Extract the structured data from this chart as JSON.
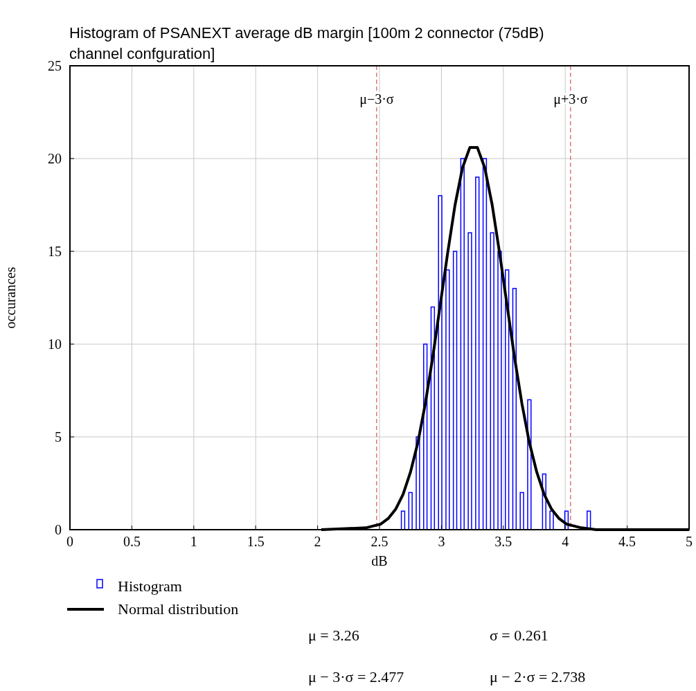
{
  "chart_data": {
    "type": "histogram",
    "title": "Histogram of PSANEXT average dB margin [100m 2 connector (75dB) channel confguration]",
    "xlabel": "dB",
    "ylabel": "occurances",
    "bins": [
      2.66,
      2.72,
      2.78,
      2.84,
      2.9,
      2.96,
      3.02,
      3.08,
      3.14,
      3.2,
      3.26,
      3.32,
      3.38,
      3.44,
      3.5,
      3.56,
      3.62,
      3.68,
      3.74,
      3.8,
      3.86,
      3.92,
      3.98,
      4.04,
      4.1,
      4.16,
      4.22
    ],
    "series": [
      {
        "name": "Histogram",
        "color": "#0000ff",
        "values": [
          1,
          2,
          5,
          10,
          12,
          18,
          14,
          15,
          20,
          16,
          19,
          20,
          16,
          15,
          14,
          13,
          2,
          7,
          0,
          3,
          1,
          0,
          1,
          0,
          0,
          1
        ]
      },
      {
        "type": "line",
        "name": "Normal distribution",
        "color": "#000000",
        "x": [
          2.03,
          2.39,
          2.45,
          2.51,
          2.57,
          2.63,
          2.69,
          2.75,
          2.81,
          2.87,
          2.93,
          2.99,
          3.05,
          3.11,
          3.17,
          3.23,
          3.29,
          3.35,
          3.41,
          3.47,
          3.53,
          3.59,
          3.65,
          3.71,
          3.77,
          3.83,
          3.89,
          3.95,
          4.01,
          4.07,
          4.13,
          4.25,
          5.0
        ],
        "values": [
          0,
          0.1,
          0.2,
          0.3,
          0.6,
          1.1,
          1.9,
          3.1,
          4.7,
          6.8,
          9.3,
          12.1,
          14.9,
          17.5,
          19.5,
          20.6,
          20.6,
          19.5,
          17.5,
          14.9,
          12.1,
          9.3,
          6.8,
          4.7,
          3.1,
          1.9,
          1.1,
          0.6,
          0.3,
          0.2,
          0.1,
          0,
          0
        ]
      }
    ],
    "xlim": [
      0,
      5
    ],
    "xticks": [
      0,
      {
        "value": 0.5,
        "label": "0.5"
      },
      1,
      {
        "value": 1.5,
        "label": "1.5"
      },
      2,
      {
        "value": 2.5,
        "label": "2.5"
      },
      3,
      {
        "value": 3.5,
        "label": "3.5"
      },
      4,
      {
        "value": 4.5,
        "label": "4.5"
      },
      5
    ],
    "ylim": [
      0,
      25
    ],
    "yticks": [
      0,
      5,
      10,
      15,
      20,
      25
    ],
    "grid": true,
    "legend": "bottom left",
    "ref_lines": [
      {
        "axis": "x",
        "value": 2.477,
        "label": "μ−3·σ",
        "color": "#cc3333",
        "line_style": "dashed"
      },
      {
        "axis": "x",
        "value": 4.043,
        "label": "μ+3·σ",
        "color": "#cc3333",
        "line_style": "dashed"
      }
    ],
    "annotations": [
      "μ = 3.26",
      "σ = 0.261",
      "μ − 3·σ = 2.477",
      "μ − 2·σ = 2.738"
    ]
  }
}
